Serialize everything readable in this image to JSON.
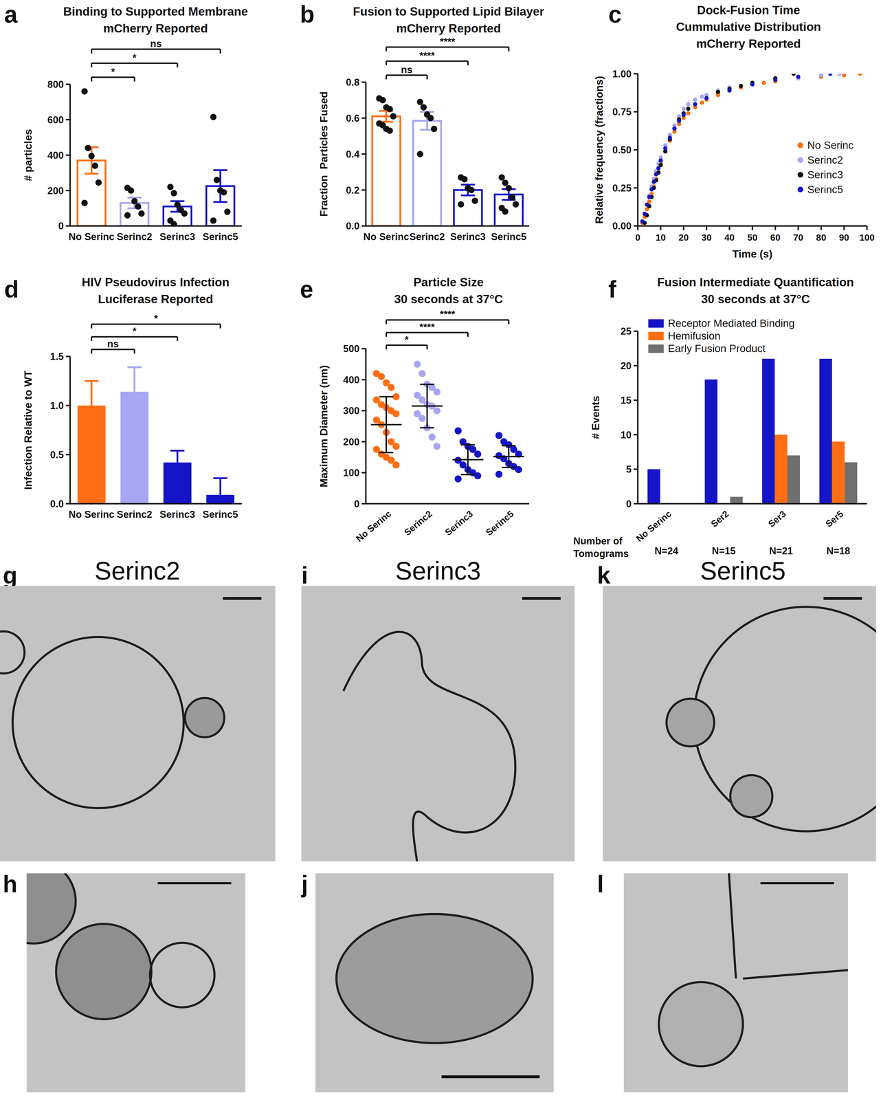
{
  "chart_data": [
    {
      "panel_label": "a",
      "type": "bar",
      "title": "Binding to Supported Membrane",
      "subtitle": "mCherry Reported",
      "y_label": "# particles",
      "categories": [
        "No Serinc",
        "Serinc2",
        "Serinc3",
        "Serinc5"
      ],
      "values": [
        370,
        130,
        110,
        225
      ],
      "errors": [
        75,
        30,
        30,
        90
      ],
      "colors": [
        "#ff6e14",
        "#a6a6f2",
        "#1515c8",
        "#1515c8"
      ],
      "points": [
        [
          760,
          440,
          395,
          340,
          245,
          130
        ],
        [
          215,
          200,
          140,
          110,
          70,
          60
        ],
        [
          220,
          185,
          120,
          90,
          70,
          30,
          10
        ],
        [
          615,
          260,
          200,
          190,
          80,
          30
        ]
      ],
      "ylim": [
        0,
        800
      ],
      "yticks": [
        0,
        200,
        400,
        600,
        800
      ],
      "annotations": [
        {
          "from": 0,
          "to": 1,
          "label": "*"
        },
        {
          "from": 0,
          "to": 2,
          "label": "*"
        },
        {
          "from": 0,
          "to": 3,
          "label": "ns"
        }
      ]
    },
    {
      "panel_label": "b",
      "type": "bar",
      "title": "Fusion to Supported Lipid Bilayer",
      "subtitle": "mCherry Reported",
      "y_label": "Fraction  Particles Fused",
      "categories": [
        "No Serinc",
        "Serinc2",
        "Serinc3",
        "Serinc5"
      ],
      "values": [
        0.61,
        0.585,
        0.2,
        0.175
      ],
      "errors": [
        0.03,
        0.05,
        0.03,
        0.03
      ],
      "colors": [
        "#ff6e14",
        "#a6a6f2",
        "#1515c8",
        "#1515c8"
      ],
      "points": [
        [
          0.71,
          0.7,
          0.66,
          0.65,
          0.61,
          0.57,
          0.56,
          0.54,
          0.53
        ],
        [
          0.69,
          0.66,
          0.62,
          0.6,
          0.54,
          0.4
        ],
        [
          0.27,
          0.26,
          0.21,
          0.2,
          0.14,
          0.12
        ],
        [
          0.27,
          0.24,
          0.21,
          0.16,
          0.12,
          0.1,
          0.08
        ]
      ],
      "ylim": [
        0,
        0.8
      ],
      "yticks": [
        {
          "value": 0,
          "label": "0.0"
        },
        {
          "value": 0.2,
          "label": "0.2"
        },
        {
          "value": 0.4,
          "label": "0.4"
        },
        {
          "value": 0.6,
          "label": "0.6"
        },
        {
          "value": 0.8,
          "label": "0.8"
        }
      ],
      "annotations": [
        {
          "from": 0,
          "to": 1,
          "label": "ns"
        },
        {
          "from": 0,
          "to": 2,
          "label": "****"
        },
        {
          "from": 0,
          "to": 3,
          "label": "****"
        }
      ]
    },
    {
      "panel_label": "c",
      "type": "scatter",
      "title": "Dock-Fusion Time",
      "subtitle": [
        "Cummulative Distribution",
        "mCherry Reported"
      ],
      "x_label": "Time (s)",
      "y_label": "Relative frequency (fractions)",
      "legend": "right",
      "marker": "circle",
      "xlim": [
        0,
        100
      ],
      "ylim": [
        0,
        1
      ],
      "xticks": [
        0,
        10,
        20,
        30,
        40,
        50,
        60,
        70,
        80,
        90,
        100
      ],
      "yticks": [
        {
          "value": 0,
          "label": "0.00"
        },
        {
          "value": 0.25,
          "label": "0.25"
        },
        {
          "value": 0.5,
          "label": "0.50"
        },
        {
          "value": 0.75,
          "label": "0.75"
        },
        {
          "value": 1,
          "label": "1.00"
        }
      ],
      "series": [
        {
          "name": "No Serinc",
          "color": "#ff6e14",
          "x": [
            2,
            3,
            4,
            5,
            6,
            7,
            8,
            9,
            10,
            12,
            14,
            16,
            18,
            20,
            22,
            25,
            28,
            30,
            35,
            40,
            45,
            50,
            55,
            60,
            70,
            80,
            90,
            97
          ],
          "values": [
            0.02,
            0.06,
            0.11,
            0.16,
            0.21,
            0.26,
            0.31,
            0.36,
            0.41,
            0.49,
            0.56,
            0.62,
            0.67,
            0.71,
            0.74,
            0.78,
            0.81,
            0.83,
            0.86,
            0.89,
            0.91,
            0.93,
            0.94,
            0.95,
            0.97,
            0.98,
            0.99,
            1.0
          ]
        },
        {
          "name": "Serinc2",
          "color": "#a6a6f2",
          "x": [
            2,
            3,
            4,
            5,
            6,
            7,
            8,
            9,
            10,
            12,
            14,
            16,
            18,
            20,
            22,
            25,
            28,
            30,
            35,
            40,
            50,
            60,
            70,
            80,
            88
          ],
          "values": [
            0.03,
            0.08,
            0.14,
            0.2,
            0.26,
            0.31,
            0.36,
            0.41,
            0.45,
            0.53,
            0.6,
            0.66,
            0.72,
            0.77,
            0.8,
            0.83,
            0.85,
            0.86,
            0.89,
            0.91,
            0.94,
            0.96,
            0.97,
            0.99,
            1.0
          ]
        },
        {
          "name": "Serinc3",
          "color": "#111111",
          "x": [
            3,
            4,
            5,
            6,
            7,
            8,
            9,
            10,
            12,
            14,
            16,
            18,
            20,
            22,
            25,
            30,
            35,
            40,
            45,
            50,
            60,
            68
          ],
          "values": [
            0.02,
            0.07,
            0.13,
            0.19,
            0.25,
            0.3,
            0.35,
            0.4,
            0.49,
            0.57,
            0.64,
            0.7,
            0.74,
            0.77,
            0.8,
            0.84,
            0.88,
            0.9,
            0.92,
            0.94,
            0.97,
            1.0
          ]
        },
        {
          "name": "Serinc5",
          "color": "#1515c8",
          "x": [
            2,
            3,
            4,
            5,
            6,
            7,
            8,
            9,
            10,
            12,
            14,
            16,
            18,
            20,
            25,
            30,
            40,
            50,
            60,
            70,
            84
          ],
          "values": [
            0.03,
            0.08,
            0.14,
            0.19,
            0.24,
            0.29,
            0.34,
            0.38,
            0.43,
            0.51,
            0.58,
            0.64,
            0.69,
            0.73,
            0.8,
            0.84,
            0.89,
            0.93,
            0.96,
            0.98,
            1.0
          ]
        }
      ]
    },
    {
      "panel_label": "d",
      "type": "bar",
      "title": "HIV Pseudovirus Infection",
      "subtitle": "Luciferase Reported",
      "y_label": "Infection Relative to WT",
      "categories": [
        "No Serinc",
        "Serinc2",
        "Serinc3",
        "Serinc5"
      ],
      "values": [
        1.0,
        1.14,
        0.42,
        0.09
      ],
      "errors": [
        0.25,
        0.25,
        0.12,
        0.17
      ],
      "colors": [
        "#ff6e14",
        "#a6a6f2",
        "#1515c8",
        "#1515c8"
      ],
      "ylim": [
        0,
        1.5
      ],
      "yticks": [
        {
          "value": 0,
          "label": "0.0"
        },
        {
          "value": 0.5,
          "label": "0.5"
        },
        {
          "value": 1,
          "label": "1.0"
        },
        {
          "value": 1.5,
          "label": "1.5"
        }
      ],
      "annotations": [
        {
          "from": 0,
          "to": 1,
          "label": "ns"
        },
        {
          "from": 0,
          "to": 2,
          "label": "*"
        },
        {
          "from": 0,
          "to": 3,
          "label": "*"
        }
      ]
    },
    {
      "panel_label": "e",
      "type": "strip",
      "title": "Particle Size",
      "subtitle": "30 seconds at 37°C",
      "y_label": "Maximum Diameter (nm)",
      "categories": [
        "No Serinc",
        "Serinc2",
        "Serinc3",
        "Serinc5"
      ],
      "values": [
        255,
        315,
        142,
        152
      ],
      "errors": [
        90,
        70,
        48,
        35
      ],
      "colors": [
        "#ff6e14",
        "#a6a6f2",
        "#1515c8",
        "#1515c8"
      ],
      "points": [
        [
          420,
          410,
          390,
          375,
          345,
          335,
          320,
          310,
          300,
          290,
          270,
          255,
          230,
          200,
          185,
          175,
          160,
          150,
          140,
          125
        ],
        [
          450,
          420,
          385,
          375,
          360,
          350,
          335,
          320,
          315,
          300,
          290,
          275,
          245,
          215,
          185
        ],
        [
          235,
          200,
          185,
          175,
          160,
          140,
          125,
          110,
          100,
          90,
          80
        ],
        [
          220,
          200,
          190,
          175,
          160,
          155,
          145,
          130,
          120,
          110,
          95
        ]
      ],
      "ylim": [
        0,
        500
      ],
      "yticks": [
        0,
        100,
        200,
        300,
        400,
        500
      ],
      "annotations": [
        {
          "from": 0,
          "to": 1,
          "label": "*"
        },
        {
          "from": 0,
          "to": 2,
          "label": "****"
        },
        {
          "from": 0,
          "to": 3,
          "label": "****"
        }
      ]
    },
    {
      "panel_label": "f",
      "type": "bar",
      "title": "Fusion Intermediate Quantification",
      "subtitle": "30 seconds at 37°C",
      "y_label": "# Events",
      "categories": [
        "No Serinc",
        "Ser2",
        "Ser3",
        "Ser5"
      ],
      "n_labels": [
        "N=24",
        "N=15",
        "N=21",
        "N=18"
      ],
      "n_title": "Number of Tomograms",
      "legend": "top-left",
      "ylim": [
        0,
        25
      ],
      "yticks": [
        0,
        5,
        10,
        15,
        20,
        25
      ],
      "series": [
        {
          "name": "Receptor Mediated Binding",
          "color": "#1515c8",
          "values": [
            5,
            18,
            21,
            21
          ]
        },
        {
          "name": "Hemifusion",
          "color": "#ff6e14",
          "values": [
            0,
            0,
            10,
            9
          ]
        },
        {
          "name": "Early Fusion Product",
          "color": "#707070",
          "values": [
            0,
            1,
            7,
            6
          ]
        }
      ]
    }
  ],
  "images": [
    {
      "panel_label": "g",
      "title": "Serinc2"
    },
    {
      "panel_label": "h"
    },
    {
      "panel_label": "i",
      "title": "Serinc3"
    },
    {
      "panel_label": "j"
    },
    {
      "panel_label": "k",
      "title": "Serinc5"
    },
    {
      "panel_label": "l"
    }
  ]
}
